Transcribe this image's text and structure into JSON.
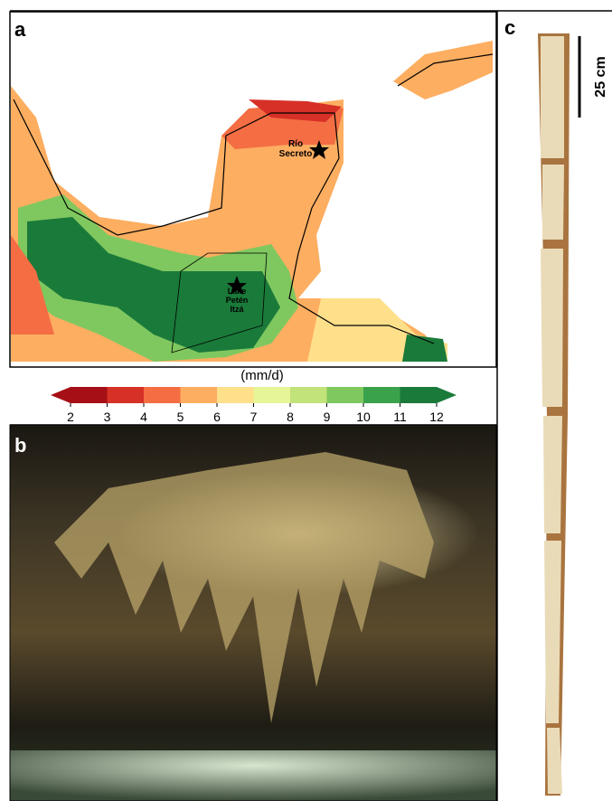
{
  "panels": {
    "a": "a",
    "b": "b",
    "c": "c"
  },
  "map": {
    "sites": [
      {
        "label": "Río\nSecreto"
      },
      {
        "label": "Lake\nPetén\nItzá"
      }
    ],
    "colorbar": {
      "unit": "(mm/d)",
      "ticks": [
        2,
        3,
        4,
        5,
        6,
        7,
        8,
        9,
        10,
        11,
        12
      ],
      "colors": [
        "#a50f15",
        "#d73027",
        "#f46d43",
        "#fdae61",
        "#fee08b",
        "#e6f598",
        "#c2e27a",
        "#7fc85f",
        "#3aa24b",
        "#1a7a3a"
      ]
    }
  },
  "core": {
    "scale_label": "25 cm"
  }
}
